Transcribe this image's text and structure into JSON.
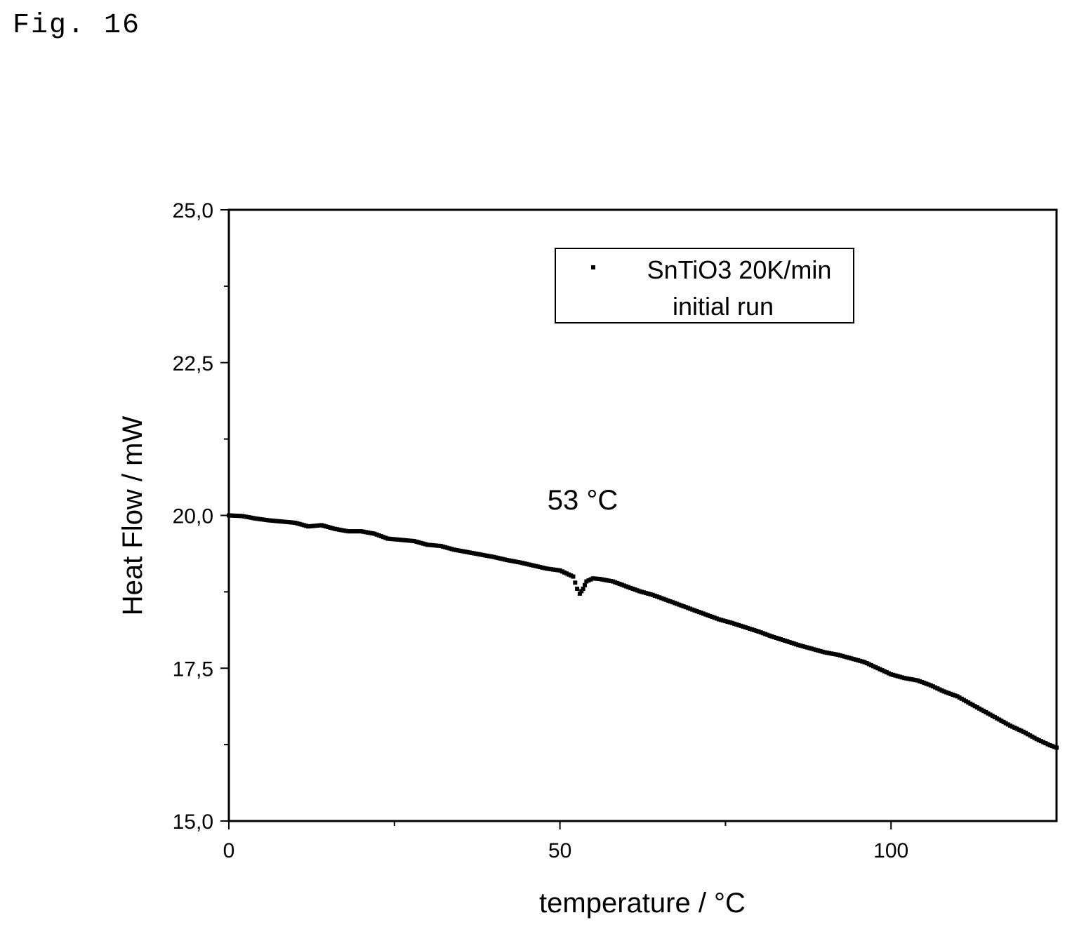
{
  "figure_label": "Fig. 16",
  "chart_data": {
    "type": "scatter",
    "xlabel": "temperature / °C",
    "ylabel": "Heat Flow / mW",
    "xlim": [
      0,
      125
    ],
    "ylim": [
      15.0,
      25.0
    ],
    "x_ticks": [
      0,
      50,
      100
    ],
    "x_tick_labels": [
      "0",
      "50",
      "100"
    ],
    "y_ticks": [
      15.0,
      17.5,
      20.0,
      22.5,
      25.0
    ],
    "y_tick_labels": [
      "15,0",
      "17,5",
      "20,0",
      "22,5",
      "25,0"
    ],
    "grid": false,
    "legend_position": "top-right",
    "annotations": [
      {
        "text": "53 °C",
        "x": 53,
        "y": 20.2
      }
    ],
    "series": [
      {
        "name": "SnTiO3 20K/min initial run",
        "color": "#000000",
        "x": [
          0,
          2,
          4,
          6,
          8,
          10,
          12,
          14,
          16,
          18,
          20,
          22,
          24,
          26,
          28,
          30,
          32,
          34,
          36,
          38,
          40,
          42,
          44,
          46,
          48,
          50,
          51,
          52,
          52.3,
          52.6,
          53,
          53.5,
          54,
          55,
          56,
          58,
          60,
          62,
          64,
          66,
          68,
          70,
          72,
          74,
          76,
          78,
          80,
          82,
          84,
          86,
          88,
          90,
          92,
          94,
          96,
          98,
          100,
          102,
          104,
          106,
          108,
          110,
          112,
          114,
          116,
          118,
          120,
          122,
          124,
          125
        ],
        "y": [
          20.0,
          19.99,
          19.95,
          19.92,
          19.9,
          19.88,
          19.82,
          19.84,
          19.78,
          19.74,
          19.74,
          19.7,
          19.62,
          19.6,
          19.58,
          19.52,
          19.5,
          19.44,
          19.4,
          19.36,
          19.32,
          19.27,
          19.23,
          19.18,
          19.13,
          19.1,
          19.05,
          19.0,
          18.9,
          18.8,
          18.72,
          18.8,
          18.92,
          18.97,
          18.96,
          18.92,
          18.84,
          18.76,
          18.7,
          18.62,
          18.54,
          18.46,
          18.38,
          18.3,
          18.24,
          18.17,
          18.1,
          18.02,
          17.95,
          17.88,
          17.82,
          17.76,
          17.72,
          17.66,
          17.6,
          17.5,
          17.4,
          17.34,
          17.3,
          17.22,
          17.12,
          17.04,
          16.92,
          16.8,
          16.68,
          16.56,
          16.46,
          16.34,
          16.24,
          16.2
        ]
      }
    ]
  }
}
